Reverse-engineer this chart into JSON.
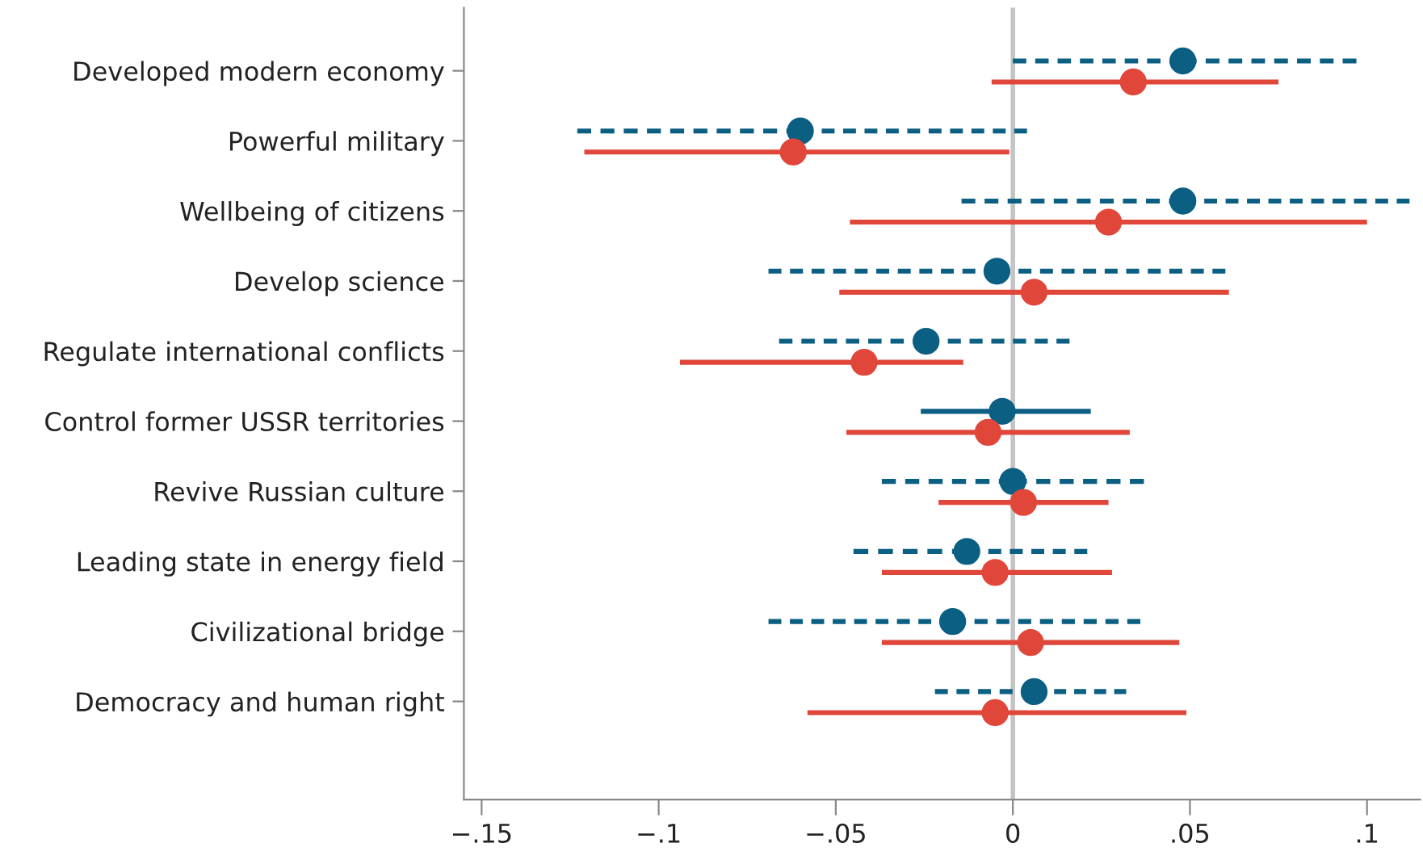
{
  "chart_data": {
    "type": "scatter",
    "orientation": "horizontal",
    "categories": [
      "Developed modern economy",
      "Powerful military",
      "Wellbeing of citizens",
      "Develop science",
      "Regulate international conflicts",
      "Control former USSR territories",
      "Revive Russian culture",
      "Leading state in energy field",
      "Civilizational bridge",
      "Democracy and human right"
    ],
    "series": [
      {
        "color": "#0b5f82",
        "line_style": "dashed",
        "values": [
          0.048,
          -0.06,
          0.048,
          -0.0045,
          -0.0245,
          null,
          0.0,
          -0.013,
          -0.017,
          0.006
        ],
        "errors": [
          [
            0.0,
            0.097
          ],
          [
            -0.123,
            0.004
          ],
          [
            -0.0145,
            0.112
          ],
          [
            -0.069,
            0.06
          ],
          [
            -0.066,
            0.016
          ],
          null,
          [
            -0.037,
            0.037
          ],
          [
            -0.045,
            0.021
          ],
          [
            -0.069,
            0.036
          ],
          [
            -0.022,
            0.032
          ]
        ]
      },
      {
        "color": "#0b5f82",
        "line_style": "solid",
        "values": [
          null,
          null,
          null,
          null,
          null,
          -0.003,
          null,
          null,
          null,
          null
        ],
        "errors": [
          null,
          null,
          null,
          null,
          null,
          [
            -0.026,
            0.022
          ],
          null,
          null,
          null,
          null
        ]
      },
      {
        "color": "#e0473a",
        "line_style": "solid",
        "values": [
          0.034,
          -0.062,
          0.027,
          0.006,
          -0.042,
          -0.007,
          0.003,
          -0.005,
          0.005,
          -0.005
        ],
        "errors": [
          [
            -0.006,
            0.075
          ],
          [
            -0.121,
            -0.001
          ],
          [
            -0.046,
            0.1
          ],
          [
            -0.049,
            0.061
          ],
          [
            -0.094,
            -0.014
          ],
          [
            -0.047,
            0.033
          ],
          [
            -0.021,
            0.027
          ],
          [
            -0.037,
            0.028
          ],
          [
            -0.037,
            0.047
          ],
          [
            -0.058,
            0.049
          ]
        ]
      }
    ],
    "marker": "circle",
    "xlim": [
      -0.155,
      0.115
    ],
    "xticks": [
      {
        "value": -0.15,
        "label": "−.15"
      },
      {
        "value": -0.1,
        "label": "−.1"
      },
      {
        "value": -0.05,
        "label": "−.05"
      },
      {
        "value": 0,
        "label": "0"
      },
      {
        "value": 0.05,
        "label": ".05"
      },
      {
        "value": 0.1,
        "label": ".1"
      }
    ],
    "ref_lines": [
      {
        "axis": "x",
        "value": 0,
        "color": "#c4c4c4"
      }
    ],
    "grid": false,
    "legend": false
  }
}
